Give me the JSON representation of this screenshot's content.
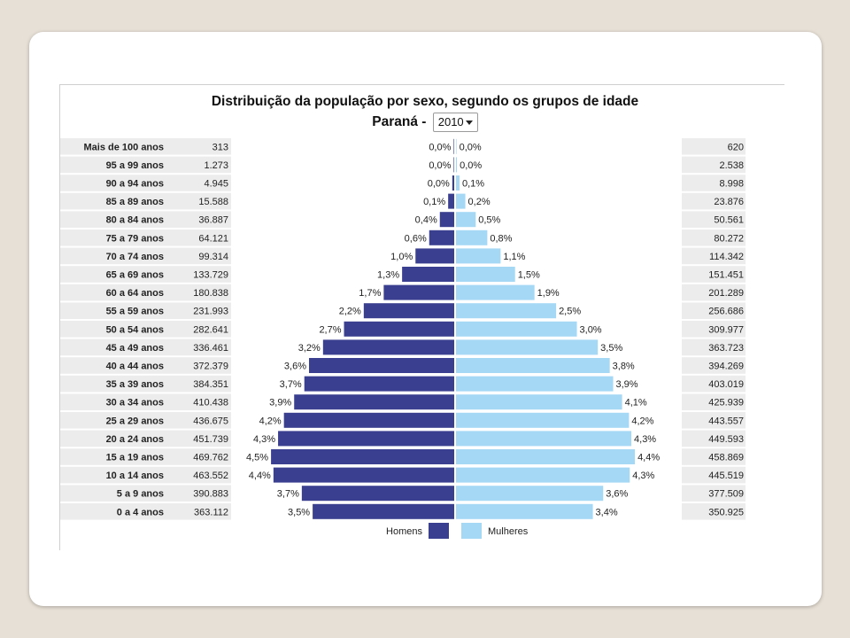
{
  "title": "Distribuição da população por sexo, segundo os grupos de idade",
  "subtitle_label": "Paraná -",
  "year_select": {
    "value": "2010"
  },
  "colors": {
    "homens": "#3b3f8f",
    "mulheres": "#a4d8f5",
    "row_shade": "#ececec"
  },
  "chart_data": {
    "type": "bar",
    "orientation": "horizontal-population-pyramid",
    "title": "Distribuição da população por sexo, segundo os grupos de idade",
    "subtitle": "Paraná - 2010",
    "legend": [
      "Homens",
      "Mulheres"
    ],
    "legend_position": "bottom-center",
    "categories": [
      "Mais de 100 anos",
      "95 a 99 anos",
      "90 a 94 anos",
      "85 a 89 anos",
      "80 a 84 anos",
      "75 a 79 anos",
      "70 a 74 anos",
      "65 a 69 anos",
      "60 a 64 anos",
      "55 a 59 anos",
      "50 a 54 anos",
      "45 a 49 anos",
      "40 a 44 anos",
      "35 a 39 anos",
      "30 a 34 anos",
      "25 a 29 anos",
      "20 a 24 anos",
      "15 a 19 anos",
      "10 a 14 anos",
      "5 a 9 anos",
      "0 a 4 anos"
    ],
    "series": [
      {
        "name": "Homens",
        "values": [
          "313",
          "1.273",
          "4.945",
          "15.588",
          "36.887",
          "64.121",
          "99.314",
          "133.729",
          "180.838",
          "231.993",
          "282.641",
          "336.461",
          "372.379",
          "384.351",
          "410.438",
          "436.675",
          "451.739",
          "469.762",
          "463.552",
          "390.883",
          "363.112"
        ],
        "percent_labels": [
          "0,0%",
          "0,0%",
          "0,0%",
          "0,1%",
          "0,4%",
          "0,6%",
          "1,0%",
          "1,3%",
          "1,7%",
          "2,2%",
          "2,7%",
          "3,2%",
          "3,6%",
          "3,7%",
          "3,9%",
          "4,2%",
          "4,3%",
          "4,5%",
          "4,4%",
          "3,7%",
          "3,5%"
        ],
        "percent": [
          0.003,
          0.012,
          0.047,
          0.149,
          0.353,
          0.614,
          0.951,
          1.28,
          1.731,
          2.221,
          2.706,
          3.221,
          3.565,
          3.68,
          3.93,
          4.181,
          4.325,
          4.498,
          4.438,
          3.742,
          3.476
        ]
      },
      {
        "name": "Mulheres",
        "values": [
          "620",
          "2.538",
          "8.998",
          "23.876",
          "50.561",
          "80.272",
          "114.342",
          "151.451",
          "201.289",
          "256.686",
          "309.977",
          "363.723",
          "394.269",
          "403.019",
          "425.939",
          "443.557",
          "449.593",
          "458.869",
          "445.519",
          "377.509",
          "350.925"
        ],
        "percent_labels": [
          "0,0%",
          "0,0%",
          "0,1%",
          "0,2%",
          "0,5%",
          "0,8%",
          "1,1%",
          "1,5%",
          "1,9%",
          "2,5%",
          "3,0%",
          "3,5%",
          "3,8%",
          "3,9%",
          "4,1%",
          "4,2%",
          "4,3%",
          "4,4%",
          "4,3%",
          "3,6%",
          "3,4%"
        ],
        "percent": [
          0.006,
          0.024,
          0.086,
          0.229,
          0.484,
          0.769,
          1.095,
          1.45,
          1.927,
          2.458,
          2.968,
          3.482,
          3.775,
          3.859,
          4.078,
          4.247,
          4.305,
          4.393,
          4.266,
          3.614,
          3.36
        ]
      }
    ],
    "xlim_percent": [
      0,
      4.5
    ]
  }
}
